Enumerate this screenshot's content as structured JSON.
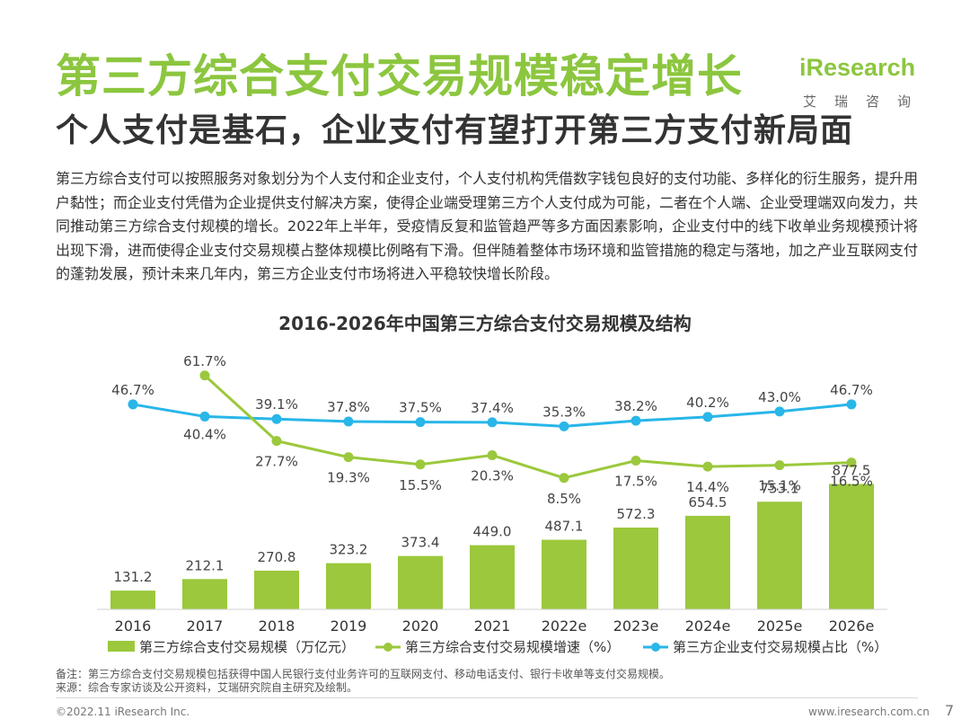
{
  "header": {
    "title": "第三方综合支付交易规模稳定增长",
    "subtitle": "个人支付是基石，企业支付有望打开第三方支付新局面",
    "logo_text": "iResearch",
    "logo_sub": "艾瑞咨询"
  },
  "body_text": "第三方综合支付可以按照服务对象划分为个人支付和企业支付，个人支付机构凭借数字钱包良好的支付功能、多样化的衍生服务，提升用户黏性；而企业支付凭借为企业提供支付解决方案，使得企业端受理第三方个人支付成为可能，二者在个人端、企业受理端双向发力，共同推动第三方综合支付规模的增长。2022年上半年，受疫情反复和监管趋严等多方面因素影响，企业支付中的线下收单业务规模预计将出现下滑，进而使得企业支付交易规模占整体规模比例略有下滑。但伴随着整体市场环境和监管措施的稳定与落地，加之产业互联网支付的蓬勃发展，预计未来几年内，第三方企业支付市场将进入平稳较快增长阶段。",
  "chart_data": {
    "type": "bar",
    "title": "2016-2026年中国第三方综合支付交易规模及结构",
    "categories": [
      "2016",
      "2017",
      "2018",
      "2019",
      "2020",
      "2021",
      "2022e",
      "2023e",
      "2024e",
      "2025e",
      "2026e"
    ],
    "series": [
      {
        "name": "第三方综合支付交易规模（万亿元）",
        "type": "bar",
        "color": "#9bc83c",
        "values": [
          131.2,
          212.1,
          270.8,
          323.2,
          373.4,
          449.0,
          487.1,
          572.3,
          654.5,
          753.1,
          877.5
        ],
        "labels": [
          "131.2",
          "212.1",
          "270.8",
          "323.2",
          "373.4",
          "449.0",
          "487.1",
          "572.3",
          "654.5",
          "753.1",
          "877.5"
        ]
      },
      {
        "name": "第三方综合支付交易规模增速（%）",
        "type": "line",
        "color": "#9bc83c",
        "values": [
          null,
          61.7,
          27.7,
          19.3,
          15.5,
          20.3,
          8.5,
          17.5,
          14.4,
          15.1,
          16.5
        ],
        "labels": [
          "",
          "61.7%",
          "27.7%",
          "19.3%",
          "15.5%",
          "20.3%",
          "8.5%",
          "17.5%",
          "14.4%",
          "15.1%",
          "16.5%"
        ]
      },
      {
        "name": "第三方企业支付交易规模占比（%）",
        "type": "line",
        "color": "#29b6e8",
        "values": [
          46.7,
          40.4,
          39.1,
          37.8,
          37.5,
          37.4,
          35.3,
          38.2,
          40.2,
          43.0,
          46.7
        ],
        "labels": [
          "46.7%",
          "40.4%",
          "39.1%",
          "37.8%",
          "37.5%",
          "37.4%",
          "35.3%",
          "38.2%",
          "40.2%",
          "43.0%",
          "46.7%"
        ]
      }
    ],
    "legend": "bottom"
  },
  "notes": {
    "note": "备注：第三方综合支付交易规模包括获得中国人民银行支付业务许可的互联网支付、移动电话支付、银行卡收单等支付交易规模。",
    "source": "来源：综合专家访谈及公开资料，艾瑞研究院自主研究及绘制。"
  },
  "footer": {
    "copyright": "©2022.11 iResearch Inc.",
    "website": "www.iresearch.com.cn",
    "page": "7"
  }
}
